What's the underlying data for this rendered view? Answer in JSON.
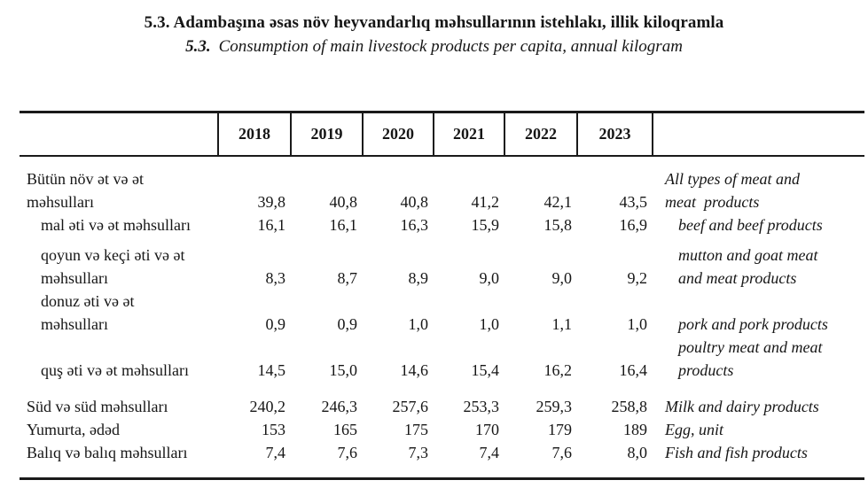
{
  "title": {
    "num_az": "5.3.",
    "az": "Adambaşına əsas növ heyvandarlıq məhsullarının istehlakı, illik kiloqramla",
    "num_en": "5.3.",
    "en": "Consumption of main livestock products per capita, annual kilogram"
  },
  "table": {
    "years": [
      "2018",
      "2019",
      "2020",
      "2021",
      "2022",
      "2023"
    ],
    "lines": [
      {
        "az": "Bütün növ ət və ət",
        "v": [
          "",
          "",
          "",
          "",
          "",
          ""
        ],
        "en": "All types of meat and"
      },
      {
        "az": "məhsulları",
        "v": [
          "39,8",
          "40,8",
          "40,8",
          "41,2",
          "42,1",
          "43,5"
        ],
        "en": "meat  products"
      },
      {
        "az": "mal əti və ət məhsulları",
        "v": [
          "16,1",
          "16,1",
          "16,3",
          "15,9",
          "15,8",
          "16,9"
        ],
        "en": "beef and beef products"
      },
      {
        "az": "qoyun və keçi əti və ət",
        "v": [
          "",
          "",
          "",
          "",
          "",
          ""
        ],
        "en": "mutton and goat meat"
      },
      {
        "az": "məhsulları",
        "v": [
          "8,3",
          "8,7",
          "8,9",
          "9,0",
          "9,0",
          "9,2"
        ],
        "en": "and meat products"
      },
      {
        "az": "donuz əti və ət",
        "v": [
          "",
          "",
          "",
          "",
          "",
          ""
        ],
        "en": ""
      },
      {
        "az": "məhsulları",
        "v": [
          "0,9",
          "0,9",
          "1,0",
          "1,0",
          "1,1",
          "1,0"
        ],
        "en": "pork and pork products"
      },
      {
        "az": "",
        "v": [
          "",
          "",
          "",
          "",
          "",
          ""
        ],
        "en": "poultry meat and meat"
      },
      {
        "az": "quş əti və ət məhsulları",
        "v": [
          "14,5",
          "15,0",
          "14,6",
          "15,4",
          "16,2",
          "16,4"
        ],
        "en": "products"
      },
      {
        "az": "Süd və süd məhsulları",
        "v": [
          "240,2",
          "246,3",
          "257,6",
          "253,3",
          "259,3",
          "258,8"
        ],
        "en": "Milk and dairy products"
      },
      {
        "az": "Yumurta, ədəd",
        "v": [
          "153",
          "165",
          "175",
          "170",
          "179",
          "189"
        ],
        "en": "Egg, unit"
      },
      {
        "az": "Balıq və balıq məhsulları",
        "v": [
          "7,4",
          "7,6",
          "7,3",
          "7,4",
          "7,6",
          "8,0"
        ],
        "en": "Fish and fish products"
      }
    ]
  }
}
